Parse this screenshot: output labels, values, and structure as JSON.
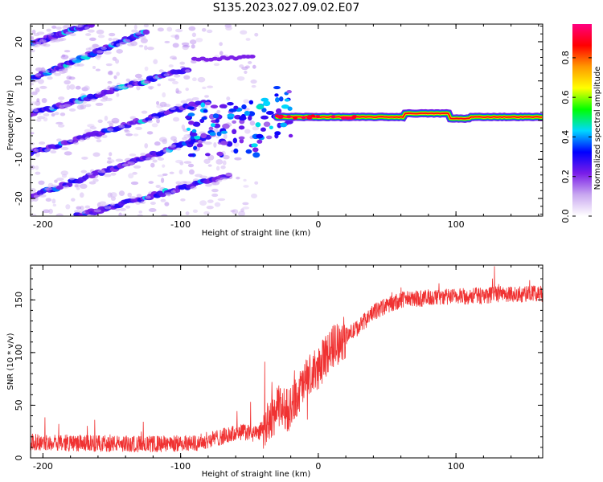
{
  "title": "S135.2023.027.09.02.E07",
  "chart_data": [
    {
      "type": "heatmap",
      "name": "spectrogram",
      "xlabel": "Height of straight line (km)",
      "ylabel": "Frequency (Hz)",
      "xlim": [
        -209,
        163
      ],
      "ylim": [
        -24.5,
        24.5
      ],
      "xticks": [
        -200,
        -100,
        0,
        100
      ],
      "yticks": [
        -20,
        -10,
        0,
        10,
        20
      ],
      "colorbar": {
        "label": "Normalized spectral amplitude",
        "range": [
          0,
          0.97
        ],
        "ticks": [
          "0.0",
          "0.2",
          "0.4",
          "0.6",
          "0.8"
        ],
        "tick_values": [
          0.0,
          0.2,
          0.4,
          0.6,
          0.8
        ],
        "colors": [
          "#ffffff",
          "#c9a8f0",
          "#7a1de8",
          "#0000ff",
          "#00d8ff",
          "#00ff00",
          "#ffff00",
          "#ff9900",
          "#ff0000",
          "#ff0080"
        ]
      },
      "diagonal_bands": [
        {
          "x_start": -209,
          "f_start": 19.5,
          "x_end": -165,
          "f_end": 24.5
        },
        {
          "x_start": -209,
          "f_start": 10.5,
          "x_end": -125,
          "f_end": 22.5
        },
        {
          "x_start": -209,
          "f_start": 1.5,
          "x_end": -95,
          "f_end": 13
        },
        {
          "x_start": -209,
          "f_start": -8.5,
          "x_end": -85,
          "f_end": 4.5
        },
        {
          "x_start": -209,
          "f_start": -19.5,
          "x_end": -80,
          "f_end": -4
        },
        {
          "x_start": -175,
          "f_start": -24.5,
          "x_end": -65,
          "f_end": -14
        }
      ],
      "stationary_line": {
        "x_start": -30,
        "x_end": 163,
        "f": 0.8,
        "amplitude": 0.85
      }
    },
    {
      "type": "line",
      "name": "snr",
      "xlabel": "Height of straight line (km)",
      "ylabel": "SNR (10 * v/v)",
      "xlim": [
        -209,
        163
      ],
      "ylim": [
        0,
        183
      ],
      "xticks": [
        -200,
        -100,
        0,
        100
      ],
      "yticks": [
        0,
        50,
        100,
        150
      ],
      "color": "#f03232",
      "trend": {
        "x": [
          -209,
          -170,
          -120,
          -90,
          -70,
          -55,
          -45,
          -35,
          -28,
          -22,
          -15,
          -8,
          0,
          5,
          10,
          20,
          30,
          40,
          50,
          60,
          80,
          100,
          130,
          163
        ],
        "y": [
          15,
          14,
          13,
          14,
          20,
          25,
          22,
          35,
          50,
          45,
          60,
          75,
          85,
          95,
          105,
          115,
          125,
          138,
          145,
          150,
          152,
          153,
          155,
          156
        ]
      },
      "noise_amplitude": 8
    }
  ]
}
